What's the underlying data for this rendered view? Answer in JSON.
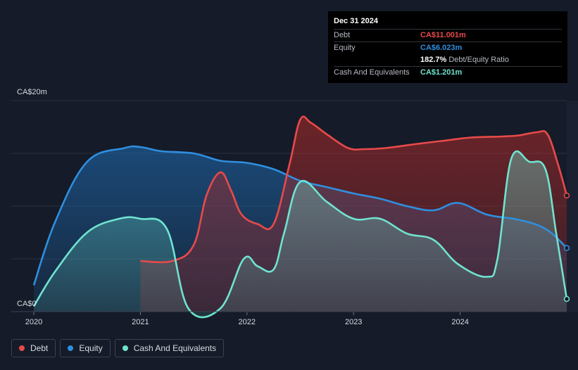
{
  "tooltip": {
    "date": "Dec 31 2024",
    "debt_label": "Debt",
    "debt_value": "CA$11.001m",
    "equity_label": "Equity",
    "equity_value": "CA$6.023m",
    "ratio_value": "182.7%",
    "ratio_label": "Debt/Equity Ratio",
    "cash_label": "Cash And Equivalents",
    "cash_value": "CA$1.201m"
  },
  "legend": {
    "debt": "Debt",
    "equity": "Equity",
    "cash": "Cash And Equivalents"
  },
  "colors": {
    "debt": "#e84a4a",
    "equity": "#2f8fdf",
    "cash": "#6fe3d0",
    "background": "#151b28"
  },
  "chart_data": {
    "type": "area",
    "y_axis_labels": [
      "CA$0",
      "CA$20m"
    ],
    "ylim": [
      0,
      20
    ],
    "xlim": [
      2020,
      2025
    ],
    "x_tick_labels": [
      "2020",
      "2021",
      "2022",
      "2023",
      "2024"
    ],
    "x_ticks": [
      2020,
      2021,
      2022,
      2023,
      2024
    ],
    "grid": true,
    "legend_position": "bottom-left",
    "series": [
      {
        "name": "Debt",
        "key": "debt",
        "points": [
          [
            2021.0,
            4.8
          ],
          [
            2021.3,
            4.8
          ],
          [
            2021.5,
            6.3
          ],
          [
            2021.62,
            11.0
          ],
          [
            2021.75,
            13.2
          ],
          [
            2021.85,
            11.5
          ],
          [
            2021.95,
            9.2
          ],
          [
            2022.1,
            8.3
          ],
          [
            2022.25,
            8.3
          ],
          [
            2022.4,
            14.0
          ],
          [
            2022.5,
            18.2
          ],
          [
            2022.6,
            17.9
          ],
          [
            2022.75,
            16.8
          ],
          [
            2022.95,
            15.5
          ],
          [
            2023.1,
            15.4
          ],
          [
            2023.3,
            15.5
          ],
          [
            2023.6,
            15.9
          ],
          [
            2023.85,
            16.2
          ],
          [
            2024.1,
            16.5
          ],
          [
            2024.4,
            16.6
          ],
          [
            2024.55,
            16.7
          ],
          [
            2024.72,
            17.0
          ],
          [
            2024.82,
            16.8
          ],
          [
            2024.92,
            13.9
          ],
          [
            2025.0,
            11.001
          ]
        ]
      },
      {
        "name": "Equity",
        "key": "equity",
        "points": [
          [
            2020.0,
            2.5
          ],
          [
            2020.2,
            8.5
          ],
          [
            2020.5,
            14.2
          ],
          [
            2020.85,
            15.5
          ],
          [
            2021.0,
            15.6
          ],
          [
            2021.2,
            15.2
          ],
          [
            2021.5,
            15.0
          ],
          [
            2021.75,
            14.3
          ],
          [
            2022.0,
            14.1
          ],
          [
            2022.25,
            13.5
          ],
          [
            2022.5,
            12.4
          ],
          [
            2022.75,
            11.8
          ],
          [
            2023.0,
            11.2
          ],
          [
            2023.25,
            10.7
          ],
          [
            2023.5,
            10.0
          ],
          [
            2023.75,
            9.6
          ],
          [
            2023.98,
            10.3
          ],
          [
            2024.25,
            9.2
          ],
          [
            2024.5,
            8.8
          ],
          [
            2024.7,
            8.3
          ],
          [
            2024.85,
            7.5
          ],
          [
            2025.0,
            6.023
          ]
        ]
      },
      {
        "name": "Cash And Equivalents",
        "key": "cash",
        "points": [
          [
            2020.0,
            0.5
          ],
          [
            2020.2,
            3.8
          ],
          [
            2020.5,
            7.5
          ],
          [
            2020.8,
            8.8
          ],
          [
            2021.0,
            8.8
          ],
          [
            2021.25,
            7.8
          ],
          [
            2021.45,
            0.3
          ],
          [
            2021.75,
            0.3
          ],
          [
            2021.97,
            5.0
          ],
          [
            2022.1,
            4.3
          ],
          [
            2022.25,
            4.0
          ],
          [
            2022.35,
            7.5
          ],
          [
            2022.5,
            12.3
          ],
          [
            2022.75,
            10.4
          ],
          [
            2023.0,
            8.8
          ],
          [
            2023.25,
            8.8
          ],
          [
            2023.5,
            7.4
          ],
          [
            2023.75,
            6.8
          ],
          [
            2023.98,
            4.5
          ],
          [
            2024.25,
            3.3
          ],
          [
            2024.35,
            5.0
          ],
          [
            2024.48,
            14.5
          ],
          [
            2024.65,
            14.2
          ],
          [
            2024.8,
            13.5
          ],
          [
            2024.9,
            7.5
          ],
          [
            2025.0,
            1.201
          ]
        ]
      }
    ]
  }
}
